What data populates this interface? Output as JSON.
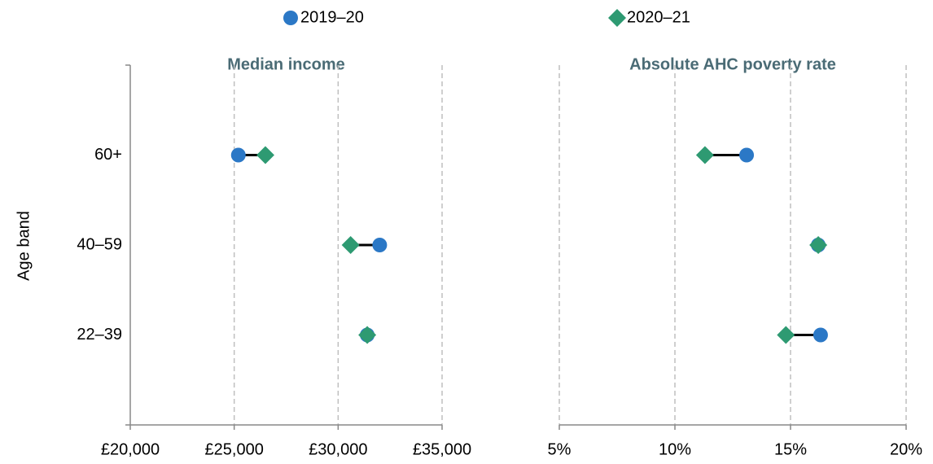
{
  "chart_data": [
    {
      "type": "dumbbell",
      "title": "Median income",
      "ylabel": "Age band",
      "categories": [
        "22–39",
        "40–59",
        "60+"
      ],
      "series": [
        {
          "name": "2019–20",
          "color": "#2b78c6",
          "values": [
            31400,
            32000,
            25200
          ]
        },
        {
          "name": "2020–21",
          "color": "#2e9a72",
          "values": [
            31400,
            30600,
            26500
          ]
        }
      ],
      "xlim": [
        20000,
        35000
      ],
      "xticks": [
        {
          "value": 20000,
          "label": "£20,000"
        },
        {
          "value": 25000,
          "label": "£25,000"
        },
        {
          "value": 30000,
          "label": "£30,000"
        },
        {
          "value": 35000,
          "label": "£35,000"
        }
      ],
      "grid": true
    },
    {
      "type": "dumbbell",
      "title": "Absolute AHC poverty rate",
      "series": [
        {
          "color": "#2b78c6",
          "values": [
            16.3,
            16.2,
            13.1
          ]
        },
        {
          "color": "#2e9a72",
          "values": [
            14.8,
            16.2,
            11.3
          ]
        }
      ],
      "xlim": [
        5,
        20
      ],
      "xticks": [
        {
          "value": 5,
          "label": "5%"
        },
        {
          "value": 10,
          "label": "10%"
        },
        {
          "value": 15,
          "label": "15%"
        },
        {
          "value": 20,
          "label": "20%"
        }
      ],
      "grid": true
    }
  ]
}
